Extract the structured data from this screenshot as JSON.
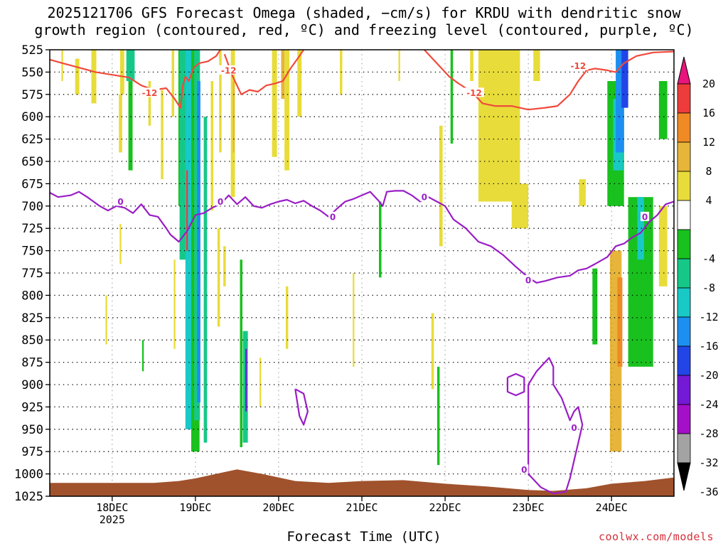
{
  "chart_data": {
    "type": "heatmap",
    "title_line1": "2025121706 GFS Forecast Omega (shaded, −cm/s) for KRDU with dendritic snow",
    "title_line2": "growth region (contoured, red, ºC) and freezing level (contoured, purple, ºC)",
    "xlabel": "Forecast Time (UTC)",
    "ylabel": "",
    "y_ticks": [
      525,
      550,
      575,
      600,
      625,
      650,
      675,
      700,
      725,
      750,
      775,
      800,
      825,
      850,
      875,
      900,
      925,
      950,
      975,
      1000,
      1025
    ],
    "ylim": [
      525,
      1025
    ],
    "x_ticks": [
      {
        "day": 18,
        "label": "18DEC",
        "sublabel": "2025"
      },
      {
        "day": 19,
        "label": "19DEC",
        "sublabel": ""
      },
      {
        "day": 20,
        "label": "20DEC",
        "sublabel": ""
      },
      {
        "day": 21,
        "label": "21DEC",
        "sublabel": ""
      },
      {
        "day": 22,
        "label": "22DEC",
        "sublabel": ""
      },
      {
        "day": 23,
        "label": "23DEC",
        "sublabel": ""
      },
      {
        "day": 24,
        "label": "24DEC",
        "sublabel": ""
      }
    ],
    "xlim_days": [
      17.25,
      24.75
    ],
    "colorbar": {
      "labels": [
        "20",
        "16",
        "12",
        "8",
        "4",
        "-4",
        "-8",
        "-12",
        "-16",
        "-20",
        "-24",
        "-28",
        "-32",
        "-36"
      ],
      "bins": [
        {
          "lo": 20,
          "hi": 24,
          "color": "#e8157d"
        },
        {
          "lo": 16,
          "hi": 20,
          "color": "#ee3b3b"
        },
        {
          "lo": 12,
          "hi": 16,
          "color": "#f08a24"
        },
        {
          "lo": 8,
          "hi": 12,
          "color": "#e7b53a"
        },
        {
          "lo": 4,
          "hi": 8,
          "color": "#e8dc3a"
        },
        {
          "lo": -4,
          "hi": 4,
          "color": "#ffffff"
        },
        {
          "lo": -8,
          "hi": -4,
          "color": "#18c11d"
        },
        {
          "lo": -12,
          "hi": -8,
          "color": "#16c888"
        },
        {
          "lo": -16,
          "hi": -12,
          "color": "#18c9c6"
        },
        {
          "lo": -20,
          "hi": -16,
          "color": "#1c8ff0"
        },
        {
          "lo": -24,
          "hi": -20,
          "color": "#2245e8"
        },
        {
          "lo": -28,
          "hi": -24,
          "color": "#7419d6"
        },
        {
          "lo": -32,
          "hi": -28,
          "color": "#a40fc8"
        },
        {
          "lo": -36,
          "hi": -32,
          "color": "#a3a3a3"
        },
        {
          "lo": -40,
          "hi": -36,
          "color": "#000000"
        }
      ]
    },
    "shaded_regions": [
      {
        "day": 17.4,
        "width": 0.02,
        "top": 525,
        "bottom": 560,
        "value": 5
      },
      {
        "day": 17.58,
        "width": 0.05,
        "top": 535,
        "bottom": 575,
        "value": 5
      },
      {
        "day": 17.78,
        "width": 0.06,
        "top": 525,
        "bottom": 585,
        "value": 5
      },
      {
        "day": 18.12,
        "width": 0.05,
        "top": 525,
        "bottom": 575,
        "value": 5
      },
      {
        "day": 18.1,
        "width": 0.04,
        "top": 575,
        "bottom": 640,
        "value": 5
      },
      {
        "day": 18.22,
        "width": 0.1,
        "top": 525,
        "bottom": 560,
        "value": -10
      },
      {
        "day": 18.22,
        "width": 0.05,
        "top": 560,
        "bottom": 660,
        "value": -6
      },
      {
        "day": 18.1,
        "width": 0.02,
        "top": 720,
        "bottom": 765,
        "value": 5
      },
      {
        "day": 17.93,
        "width": 0.02,
        "top": 800,
        "bottom": 855,
        "value": 5
      },
      {
        "day": 18.37,
        "width": 0.02,
        "top": 850,
        "bottom": 885,
        "value": -6
      },
      {
        "day": 18.45,
        "width": 0.03,
        "top": 560,
        "bottom": 610,
        "value": 5
      },
      {
        "day": 18.6,
        "width": 0.03,
        "top": 570,
        "bottom": 670,
        "value": 5
      },
      {
        "day": 18.73,
        "width": 0.03,
        "top": 525,
        "bottom": 600,
        "value": 5
      },
      {
        "day": 18.75,
        "width": 0.02,
        "top": 760,
        "bottom": 860,
        "value": 5
      },
      {
        "day": 18.82,
        "width": 0.05,
        "top": 525,
        "bottom": 700,
        "value": -6
      },
      {
        "day": 18.85,
        "width": 0.08,
        "top": 525,
        "bottom": 760,
        "value": -10
      },
      {
        "day": 18.92,
        "width": 0.08,
        "top": 525,
        "bottom": 950,
        "value": -14
      },
      {
        "day": 18.9,
        "width": 0.02,
        "top": 660,
        "bottom": 750,
        "value": 18
      },
      {
        "day": 19.0,
        "width": 0.1,
        "top": 525,
        "bottom": 975,
        "value": -6
      },
      {
        "day": 19.02,
        "width": 0.07,
        "top": 525,
        "bottom": 940,
        "value": -10
      },
      {
        "day": 19.04,
        "width": 0.04,
        "top": 560,
        "bottom": 920,
        "value": -18
      },
      {
        "day": 19.12,
        "width": 0.04,
        "top": 600,
        "bottom": 965,
        "value": -10
      },
      {
        "day": 19.2,
        "width": 0.03,
        "top": 560,
        "bottom": 705,
        "value": 5
      },
      {
        "day": 19.3,
        "width": 0.03,
        "top": 525,
        "bottom": 640,
        "value": 5
      },
      {
        "day": 19.28,
        "width": 0.03,
        "top": 725,
        "bottom": 835,
        "value": 5
      },
      {
        "day": 19.35,
        "width": 0.03,
        "top": 745,
        "bottom": 790,
        "value": 5
      },
      {
        "day": 19.45,
        "width": 0.05,
        "top": 525,
        "bottom": 690,
        "value": 5
      },
      {
        "day": 19.46,
        "width": 0.02,
        "top": 560,
        "bottom": 640,
        "value": 10
      },
      {
        "day": 19.55,
        "width": 0.03,
        "top": 760,
        "bottom": 970,
        "value": -6
      },
      {
        "day": 19.6,
        "width": 0.06,
        "top": 840,
        "bottom": 965,
        "value": -10
      },
      {
        "day": 19.61,
        "width": 0.02,
        "top": 860,
        "bottom": 930,
        "value": -26
      },
      {
        "day": 19.78,
        "width": 0.02,
        "top": 870,
        "bottom": 925,
        "value": 5
      },
      {
        "day": 19.95,
        "width": 0.06,
        "top": 525,
        "bottom": 645,
        "value": 5
      },
      {
        "day": 20.1,
        "width": 0.06,
        "top": 525,
        "bottom": 660,
        "value": 5
      },
      {
        "day": 20.05,
        "width": 0.04,
        "top": 525,
        "bottom": 580,
        "value": 10
      },
      {
        "day": 20.1,
        "width": 0.03,
        "top": 790,
        "bottom": 860,
        "value": 5
      },
      {
        "day": 20.25,
        "width": 0.05,
        "top": 525,
        "bottom": 600,
        "value": 5
      },
      {
        "day": 20.75,
        "width": 0.03,
        "top": 525,
        "bottom": 575,
        "value": 5
      },
      {
        "day": 20.9,
        "width": 0.02,
        "top": 775,
        "bottom": 880,
        "value": 5
      },
      {
        "day": 21.22,
        "width": 0.03,
        "top": 695,
        "bottom": 780,
        "value": -6
      },
      {
        "day": 21.45,
        "width": 0.02,
        "top": 525,
        "bottom": 560,
        "value": 5
      },
      {
        "day": 21.92,
        "width": 0.03,
        "top": 880,
        "bottom": 990,
        "value": -6
      },
      {
        "day": 21.85,
        "width": 0.03,
        "top": 820,
        "bottom": 905,
        "value": 5
      },
      {
        "day": 21.95,
        "width": 0.04,
        "top": 610,
        "bottom": 745,
        "value": 5
      },
      {
        "day": 22.08,
        "width": 0.03,
        "top": 525,
        "bottom": 630,
        "value": -6
      },
      {
        "day": 22.32,
        "width": 0.04,
        "top": 525,
        "bottom": 560,
        "value": 5
      },
      {
        "day": 22.65,
        "width": 0.5,
        "top": 525,
        "bottom": 695,
        "value": 5
      },
      {
        "day": 22.9,
        "width": 0.2,
        "top": 675,
        "bottom": 725,
        "value": 5
      },
      {
        "day": 23.1,
        "width": 0.08,
        "top": 525,
        "bottom": 560,
        "value": 5
      },
      {
        "day": 23.65,
        "width": 0.08,
        "top": 670,
        "bottom": 700,
        "value": 5
      },
      {
        "day": 23.8,
        "width": 0.06,
        "top": 770,
        "bottom": 855,
        "value": -6
      },
      {
        "day": 24.05,
        "width": 0.2,
        "top": 560,
        "bottom": 700,
        "value": -6
      },
      {
        "day": 24.08,
        "width": 0.12,
        "top": 580,
        "bottom": 660,
        "value": -14
      },
      {
        "day": 24.1,
        "width": 0.1,
        "top": 525,
        "bottom": 640,
        "value": -18
      },
      {
        "day": 24.16,
        "width": 0.08,
        "top": 525,
        "bottom": 590,
        "value": -22
      },
      {
        "day": 24.05,
        "width": 0.14,
        "top": 750,
        "bottom": 975,
        "value": 10
      },
      {
        "day": 24.1,
        "width": 0.06,
        "top": 780,
        "bottom": 880,
        "value": 14
      },
      {
        "day": 24.35,
        "width": 0.3,
        "top": 690,
        "bottom": 880,
        "value": -6
      },
      {
        "day": 24.35,
        "width": 0.08,
        "top": 690,
        "bottom": 760,
        "value": -14
      },
      {
        "day": 24.62,
        "width": 0.1,
        "top": 560,
        "bottom": 625,
        "value": -6
      },
      {
        "day": 24.62,
        "width": 0.1,
        "top": 700,
        "bottom": 790,
        "value": 5
      }
    ],
    "terrain": {
      "color": "#a0522d",
      "days": [
        17.25,
        18.0,
        18.5,
        18.8,
        19.0,
        19.3,
        19.5,
        19.8,
        20.2,
        20.6,
        21.0,
        21.5,
        22.0,
        22.5,
        23.0,
        23.3,
        23.7,
        24.0,
        24.4,
        24.75
      ],
      "pressure": [
        1010,
        1010,
        1010,
        1008,
        1005,
        999,
        995,
        1000,
        1008,
        1010,
        1008,
        1007,
        1011,
        1014,
        1018,
        1019,
        1016,
        1011,
        1008,
        1004
      ]
    },
    "contours": [
      {
        "name": "dendritic-growth-12C",
        "color": "#f04a3c",
        "label": "-12",
        "label_points": [
          [
            18.45,
            573
          ],
          [
            19.4,
            548
          ],
          [
            22.35,
            573
          ],
          [
            23.6,
            543
          ]
        ],
        "segments": [
          {
            "days": [
              17.25,
              17.4,
              17.6,
              17.8,
              18.0,
              18.2,
              18.35,
              18.5,
              18.65,
              18.75,
              18.82,
              18.85,
              18.88,
              18.92,
              18.98,
              19.05,
              19.15,
              19.25,
              19.3
            ],
            "pressure": [
              536,
              540,
              545,
              550,
              553,
              556,
              565,
              570,
              568,
              580,
              590,
              565,
              555,
              560,
              545,
              540,
              538,
              532,
              525
            ]
          },
          {
            "days": [
              19.35,
              19.45,
              19.55,
              19.65,
              19.75,
              19.85,
              19.95,
              20.05,
              20.15,
              20.25,
              20.3
            ],
            "pressure": [
              530,
              555,
              575,
              570,
              572,
              565,
              563,
              560,
              545,
              532,
              525
            ]
          },
          {
            "days": [
              21.75,
              21.85,
              21.95,
              22.05,
              22.15,
              22.25,
              22.35,
              22.45,
              22.6,
              22.8,
              23.0,
              23.2,
              23.35,
              23.5,
              23.6,
              23.7,
              23.8,
              23.95,
              24.05,
              24.15,
              24.3,
              24.5,
              24.75
            ],
            "pressure": [
              525,
              535,
              545,
              555,
              562,
              568,
              575,
              585,
              588,
              588,
              592,
              590,
              588,
              575,
              560,
              548,
              546,
              548,
              550,
              540,
              532,
              528,
              527
            ]
          }
        ]
      },
      {
        "name": "freezing-level-0C",
        "color": "#9a1dc6",
        "label": "0",
        "label_points": [
          [
            18.1,
            695
          ],
          [
            19.3,
            695
          ],
          [
            20.65,
            712
          ],
          [
            21.75,
            690
          ],
          [
            23.0,
            783
          ],
          [
            24.4,
            712
          ],
          [
            23.55,
            948
          ],
          [
            22.95,
            995
          ]
        ],
        "segments": [
          {
            "days": [
              17.25,
              17.35,
              17.5,
              17.6,
              17.7,
              17.85,
              17.95,
              18.05,
              18.15,
              18.25,
              18.35,
              18.45,
              18.55,
              18.65,
              18.7,
              18.8,
              18.9,
              19.0,
              19.1,
              19.2,
              19.3,
              19.4,
              19.5,
              19.6,
              19.7,
              19.8,
              19.9,
              20.0,
              20.1,
              20.2,
              20.3,
              20.4,
              20.5,
              20.6,
              20.7,
              20.8,
              20.9,
              21.0,
              21.1,
              21.2,
              21.25,
              21.3,
              21.4,
              21.5,
              21.6,
              21.7,
              21.8,
              21.9,
              22.0,
              22.1,
              22.25,
              22.4,
              22.55,
              22.7,
              22.85,
              23.0,
              23.1,
              23.2,
              23.35,
              23.5,
              23.6,
              23.7,
              23.8,
              23.95,
              24.05,
              24.15,
              24.25,
              24.35,
              24.45,
              24.55,
              24.65,
              24.75
            ],
            "pressure": [
              685,
              690,
              688,
              684,
              690,
              700,
              705,
              700,
              702,
              708,
              698,
              710,
              712,
              725,
              732,
              740,
              728,
              710,
              708,
              702,
              698,
              688,
              698,
              690,
              700,
              702,
              698,
              695,
              693,
              697,
              694,
              700,
              705,
              712,
              703,
              695,
              692,
              688,
              684,
              694,
              700,
              684,
              683,
              683,
              688,
              695,
              690,
              695,
              700,
              715,
              725,
              740,
              745,
              755,
              768,
              780,
              786,
              784,
              780,
              778,
              772,
              770,
              765,
              757,
              745,
              742,
              735,
              730,
              718,
              710,
              698,
              695
            ]
          },
          {
            "days": [
              22.75,
              22.85,
              22.95,
              22.95,
              22.85,
              22.75,
              22.75
            ],
            "pressure": [
              892,
              888,
              892,
              908,
              912,
              908,
              892
            ]
          },
          {
            "days": [
              23.0,
              23.1,
              23.2,
              23.25,
              23.3,
              23.3,
              23.4,
              23.5,
              23.55,
              23.6,
              23.65,
              23.6,
              23.55,
              23.5,
              23.45,
              23.3,
              23.15,
              23.0,
              23.0
            ],
            "pressure": [
              900,
              885,
              875,
              870,
              880,
              900,
              915,
              940,
              930,
              925,
              945,
              965,
              985,
              1005,
              1020,
              1022,
              1015,
              1000,
              900
            ]
          },
          {
            "days": [
              20.2,
              20.3,
              20.35,
              20.3,
              20.25,
              20.2
            ],
            "pressure": [
              905,
              910,
              930,
              945,
              935,
              905
            ]
          }
        ]
      }
    ]
  }
}
